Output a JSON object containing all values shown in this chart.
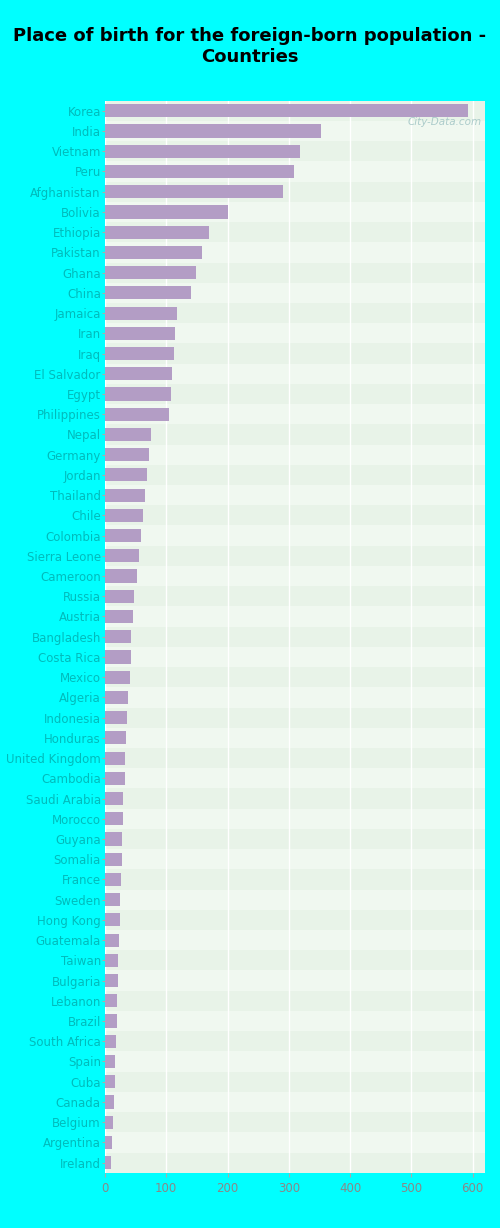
{
  "title": "Place of birth for the foreign-born population -\nCountries",
  "countries": [
    "Korea",
    "India",
    "Vietnam",
    "Peru",
    "Afghanistan",
    "Bolivia",
    "Ethiopia",
    "Pakistan",
    "Ghana",
    "China",
    "Jamaica",
    "Iran",
    "Iraq",
    "El Salvador",
    "Egypt",
    "Philippines",
    "Nepal",
    "Germany",
    "Jordan",
    "Thailand",
    "Chile",
    "Colombia",
    "Sierra Leone",
    "Cameroon",
    "Russia",
    "Austria",
    "Bangladesh",
    "Costa Rica",
    "Mexico",
    "Algeria",
    "Indonesia",
    "Honduras",
    "United Kingdom",
    "Cambodia",
    "Saudi Arabia",
    "Morocco",
    "Guyana",
    "Somalia",
    "France",
    "Sweden",
    "Hong Kong",
    "Guatemala",
    "Taiwan",
    "Bulgaria",
    "Lebanon",
    "Brazil",
    "South Africa",
    "Spain",
    "Cuba",
    "Canada",
    "Belgium",
    "Argentina",
    "Ireland"
  ],
  "values": [
    593,
    352,
    318,
    308,
    290,
    200,
    170,
    158,
    148,
    140,
    118,
    115,
    112,
    110,
    108,
    105,
    75,
    72,
    68,
    65,
    62,
    58,
    55,
    52,
    48,
    45,
    43,
    42,
    40,
    38,
    36,
    35,
    33,
    32,
    30,
    29,
    28,
    27,
    26,
    25,
    24,
    23,
    22,
    21,
    20,
    19,
    18,
    17,
    16,
    15,
    13,
    12,
    10
  ],
  "bar_color": "#b39dc5",
  "fig_bg_color": "#00ffff",
  "plot_bg_even": "#e8f3e8",
  "plot_bg_odd": "#f0f8f0",
  "grid_color": "#ffffff",
  "label_color": "#00bbbb",
  "tick_color": "#888888",
  "xlim": [
    0,
    620
  ],
  "xticks": [
    0,
    100,
    200,
    300,
    400,
    500,
    600
  ],
  "title_fontsize": 13,
  "label_fontsize": 8.5,
  "tick_fontsize": 8.5,
  "watermark": "City-Data.com",
  "bar_height": 0.65
}
